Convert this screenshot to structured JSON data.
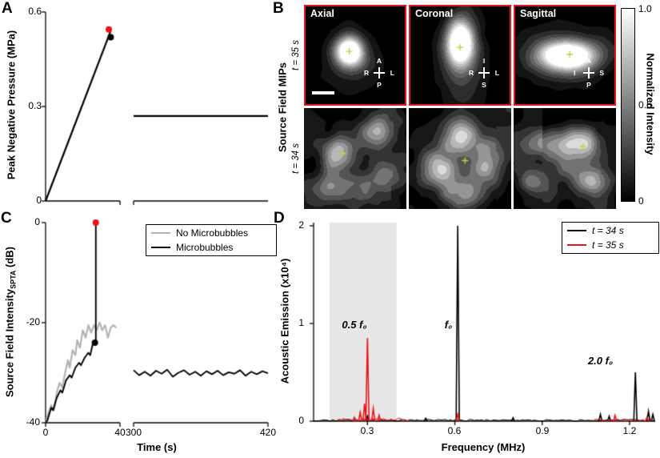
{
  "figure": {
    "background": "#ffffff",
    "accent_red": "#e8141b",
    "panel_letters": {
      "A": "A",
      "B": "B",
      "C": "C",
      "D": "D"
    }
  },
  "chart_data": [
    {
      "panel": "A",
      "type": "line",
      "ylabel": "Peak Negative Pressure (MPa)",
      "ylim": [
        0,
        0.6
      ],
      "yticks": [
        0,
        0.3,
        0.6
      ],
      "ytick_labels": [
        "0.6",
        "0.3",
        "0"
      ],
      "x_axis": {
        "break": true,
        "segments": [
          [
            0,
            40
          ],
          [
            300,
            420
          ]
        ]
      },
      "series": [
        {
          "name": "pressure-ramp",
          "color": "#000000",
          "points": [
            [
              0,
              0
            ],
            [
              35,
              0.54
            ]
          ]
        },
        {
          "name": "pressure-plateau",
          "color": "#000000",
          "points": [
            [
              300,
              0.27
            ],
            [
              420,
              0.27
            ]
          ]
        }
      ],
      "markers": [
        {
          "x": 35,
          "y": 0.52,
          "color": "#000000"
        },
        {
          "x": 34,
          "y": 0.545,
          "color": "#e8141b"
        }
      ]
    },
    {
      "panel": "B",
      "type": "heatmap",
      "side_label": "Source Field MIPs",
      "row_labels": [
        "t = 35 s",
        "t = 34 s"
      ],
      "col_labels": [
        "Axial",
        "Coronal",
        "Sagittal"
      ],
      "top_row_border_color": "#e8141b",
      "colorbar": {
        "label": "Normalized Intensity",
        "ticks": [
          "1.0",
          "0.5",
          "0"
        ]
      },
      "compasses": [
        {
          "top": "A",
          "left": "R",
          "right": "L",
          "bottom": "P"
        },
        {
          "top": "I",
          "left": "R",
          "right": "L",
          "bottom": "S"
        },
        {
          "top": "A",
          "left": "I",
          "right": "S",
          "bottom": "P"
        }
      ],
      "render": {
        "marker_color": "#c9cf3a",
        "images": [
          {
            "seed": 11,
            "freq": 3.0,
            "noise": 0.16,
            "levels": 10,
            "floor": 0.02,
            "marker": [
              0.44,
              0.46
            ],
            "gaussians": [
              {
                "x": 0.44,
                "y": 0.46,
                "sx": 0.1,
                "sy": 0.11,
                "a": 1.15
              },
              {
                "x": 0.46,
                "y": 0.52,
                "sx": 0.22,
                "sy": 0.25,
                "a": 0.22
              }
            ]
          },
          {
            "seed": 22,
            "freq": 3.0,
            "noise": 0.16,
            "levels": 10,
            "floor": 0.02,
            "marker": [
              0.5,
              0.42
            ],
            "gaussians": [
              {
                "x": 0.5,
                "y": 0.36,
                "sx": 0.1,
                "sy": 0.17,
                "a": 1.15
              },
              {
                "x": 0.52,
                "y": 0.58,
                "sx": 0.16,
                "sy": 0.3,
                "a": 0.3
              }
            ]
          },
          {
            "seed": 33,
            "freq": 3.0,
            "noise": 0.16,
            "levels": 10,
            "floor": 0.02,
            "marker": [
              0.55,
              0.49
            ],
            "gaussians": [
              {
                "x": 0.52,
                "y": 0.5,
                "sx": 0.21,
                "sy": 0.11,
                "a": 1.15
              },
              {
                "x": 0.5,
                "y": 0.5,
                "sx": 0.34,
                "sy": 0.22,
                "a": 0.22
              }
            ]
          },
          {
            "seed": 44,
            "freq": 3.6,
            "noise": 0.42,
            "levels": 9,
            "floor": 0.1,
            "marker": [
              0.38,
              0.45
            ],
            "gaussians": [
              {
                "x": 0.33,
                "y": 0.44,
                "sx": 0.1,
                "sy": 0.12,
                "a": 0.55
              },
              {
                "x": 0.7,
                "y": 0.22,
                "sx": 0.12,
                "sy": 0.1,
                "a": 0.45
              },
              {
                "x": 0.24,
                "y": 0.8,
                "sx": 0.14,
                "sy": 0.1,
                "a": 0.4
              },
              {
                "x": 0.8,
                "y": 0.68,
                "sx": 0.1,
                "sy": 0.12,
                "a": 0.38
              },
              {
                "x": 0.55,
                "y": 0.58,
                "sx": 0.3,
                "sy": 0.3,
                "a": 0.18
              }
            ]
          },
          {
            "seed": 55,
            "freq": 3.6,
            "noise": 0.42,
            "levels": 9,
            "floor": 0.1,
            "marker": [
              0.55,
              0.52
            ],
            "gaussians": [
              {
                "x": 0.5,
                "y": 0.28,
                "sx": 0.1,
                "sy": 0.14,
                "a": 0.5
              },
              {
                "x": 0.3,
                "y": 0.62,
                "sx": 0.12,
                "sy": 0.12,
                "a": 0.45
              },
              {
                "x": 0.76,
                "y": 0.55,
                "sx": 0.12,
                "sy": 0.14,
                "a": 0.5
              },
              {
                "x": 0.5,
                "y": 0.85,
                "sx": 0.15,
                "sy": 0.1,
                "a": 0.33
              },
              {
                "x": 0.5,
                "y": 0.5,
                "sx": 0.32,
                "sy": 0.3,
                "a": 0.18
              }
            ]
          },
          {
            "seed": 66,
            "freq": 3.6,
            "noise": 0.42,
            "levels": 9,
            "floor": 0.1,
            "marker": [
              0.68,
              0.38
            ],
            "gaussians": [
              {
                "x": 0.64,
                "y": 0.34,
                "sx": 0.16,
                "sy": 0.1,
                "a": 0.6
              },
              {
                "x": 0.28,
                "y": 0.36,
                "sx": 0.12,
                "sy": 0.1,
                "a": 0.4
              },
              {
                "x": 0.76,
                "y": 0.72,
                "sx": 0.12,
                "sy": 0.1,
                "a": 0.45
              },
              {
                "x": 0.2,
                "y": 0.72,
                "sx": 0.1,
                "sy": 0.1,
                "a": 0.33
              },
              {
                "x": 0.5,
                "y": 0.55,
                "sx": 0.3,
                "sy": 0.25,
                "a": 0.18
              }
            ]
          }
        ]
      }
    },
    {
      "panel": "C",
      "type": "line",
      "ylabel_prefix": "Source Field Intensity",
      "ylabel_sub": "SPTA",
      "ylabel_suffix": " (dB)",
      "xlabel": "Time (s)",
      "ylim": [
        -40,
        0
      ],
      "yticks": [
        0,
        -20,
        -40
      ],
      "ytick_labels": [
        "0",
        "-20",
        "-40"
      ],
      "xticks": [
        0,
        40,
        300,
        420
      ],
      "xtick_labels": [
        "0",
        "40",
        "300",
        "420"
      ],
      "x_axis": {
        "break": true,
        "segments": [
          [
            0,
            40
          ],
          [
            300,
            420
          ]
        ]
      },
      "legend": [
        {
          "label": "No Microbubbles",
          "color": "#b3b3b3"
        },
        {
          "label": "Microbubbles",
          "color": "#000000"
        }
      ],
      "series": [
        {
          "name": "No Microbubbles",
          "color": "#b3b3b3",
          "points": [
            [
              0,
              -40
            ],
            [
              1.5,
              -38
            ],
            [
              3,
              -36.5
            ],
            [
              4.5,
              -37.5
            ],
            [
              6,
              -34
            ],
            [
              7.5,
              -32
            ],
            [
              9,
              -33
            ],
            [
              10.5,
              -30
            ],
            [
              12,
              -27.5
            ],
            [
              13,
              -29
            ],
            [
              14.5,
              -25.5
            ],
            [
              16,
              -26.5
            ],
            [
              17,
              -23.5
            ],
            [
              18.5,
              -25
            ],
            [
              20,
              -21.5
            ],
            [
              21.5,
              -23
            ],
            [
              23,
              -20.5
            ],
            [
              24.5,
              -22
            ],
            [
              26,
              -20.5
            ],
            [
              27.5,
              -21.5
            ],
            [
              29,
              -20
            ],
            [
              30.5,
              -21.5
            ],
            [
              32,
              -20.5
            ],
            [
              33.5,
              -23
            ],
            [
              35,
              -21
            ],
            [
              36.5,
              -20.5
            ],
            [
              38,
              -21
            ]
          ]
        },
        {
          "name": "Microbubbles ramp",
          "color": "#000000",
          "points": [
            [
              0,
              -40
            ],
            [
              1,
              -39.5
            ],
            [
              3,
              -37
            ],
            [
              4,
              -37.5
            ],
            [
              6,
              -35
            ],
            [
              8,
              -33.5
            ],
            [
              9,
              -34
            ],
            [
              11,
              -31.5
            ],
            [
              13,
              -30.5
            ],
            [
              14,
              -31
            ],
            [
              16,
              -29
            ],
            [
              18,
              -28
            ],
            [
              19,
              -28.5
            ],
            [
              21,
              -27
            ],
            [
              23,
              -26
            ],
            [
              24,
              -26.5
            ],
            [
              25.5,
              -24
            ],
            [
              26.5,
              -24.2
            ],
            [
              27,
              -24
            ],
            [
              27,
              0
            ]
          ]
        },
        {
          "name": "Microbubbles sustained",
          "color": "#000000",
          "points": [
            [
              300,
              -29.5
            ],
            [
              305,
              -30.5
            ],
            [
              310,
              -29.8
            ],
            [
              315,
              -30.6
            ],
            [
              320,
              -29.6
            ],
            [
              325,
              -30.2
            ],
            [
              330,
              -29.4
            ],
            [
              335,
              -30.8
            ],
            [
              340,
              -30
            ],
            [
              345,
              -29.5
            ],
            [
              350,
              -30.4
            ],
            [
              355,
              -29.8
            ],
            [
              360,
              -30.6
            ],
            [
              365,
              -29.7
            ],
            [
              370,
              -30.3
            ],
            [
              375,
              -29.6
            ],
            [
              380,
              -30.5
            ],
            [
              385,
              -29.9
            ],
            [
              390,
              -30.2
            ],
            [
              395,
              -29.5
            ],
            [
              400,
              -30.6
            ],
            [
              405,
              -29.8
            ],
            [
              410,
              -30.3
            ],
            [
              415,
              -29.7
            ],
            [
              420,
              -30.1
            ]
          ]
        }
      ],
      "markers": [
        {
          "x": 26.5,
          "y": -24,
          "color": "#000000"
        },
        {
          "x": 27,
          "y": 0,
          "color": "#e8141b"
        }
      ]
    },
    {
      "panel": "D",
      "type": "line",
      "ylabel": "Acoustic Emission (x10⁴)",
      "xlabel": "Frequency (MHz)",
      "ylim": [
        0,
        2
      ],
      "yticks": [
        0,
        1,
        2
      ],
      "ytick_labels": [
        "2",
        "1",
        "0"
      ],
      "xlim": [
        0.115,
        1.29
      ],
      "xticks": [
        0.3,
        0.6,
        0.9,
        1.2
      ],
      "xtick_labels": [
        "0.3",
        "0.6",
        "0.9",
        "1.2"
      ],
      "shaded_band": {
        "x0": 0.17,
        "x1": 0.4,
        "color": "#e7e7e7"
      },
      "legend": [
        {
          "label": "t = 34 s",
          "color": "#000000"
        },
        {
          "label": "t = 35 s",
          "color": "#e8141b"
        }
      ],
      "annotations": [
        {
          "label": "0.5 f₀",
          "f": 0.255,
          "value": 0.92
        },
        {
          "label": "f₀",
          "f": 0.578,
          "value": 0.92
        },
        {
          "label": "2.0 f₀",
          "f": 1.1,
          "value": 0.55
        }
      ],
      "series": [
        {
          "name": "t = 34 s",
          "color": "#000000",
          "baseline_noise": 2.2,
          "peaks": [
            [
              0.61,
              2.0
            ],
            [
              1.22,
              0.5
            ],
            [
              1.1,
              0.07
            ],
            [
              1.13,
              0.05
            ],
            [
              0.8,
              0.035
            ],
            [
              1.265,
              0.1
            ],
            [
              1.28,
              0.07
            ],
            [
              0.5,
              0.03
            ],
            [
              0.3,
              0.05
            ]
          ]
        },
        {
          "name": "t = 35 s",
          "color": "#e8141b",
          "baseline_noise": 4.0,
          "baseline_range": [
            0.2,
            0.45
          ],
          "peaks": [
            [
              0.3,
              0.85
            ],
            [
              0.275,
              0.09
            ],
            [
              0.32,
              0.13
            ],
            [
              0.34,
              0.06
            ],
            [
              0.29,
              0.18
            ],
            [
              0.61,
              0.07
            ],
            [
              1.15,
              0.06
            ],
            [
              1.26,
              0.04
            ],
            [
              0.255,
              0.04
            ]
          ]
        }
      ]
    }
  ]
}
